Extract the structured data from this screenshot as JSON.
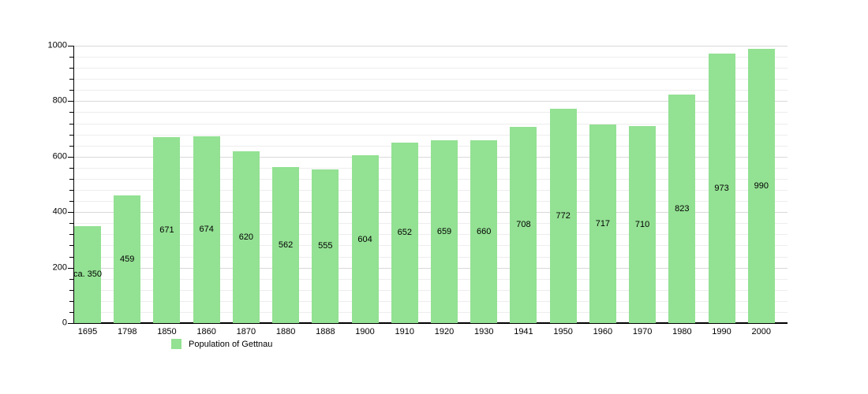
{
  "chart_data": {
    "type": "bar",
    "categories": [
      "1695",
      "1798",
      "1850",
      "1860",
      "1870",
      "1880",
      "1888",
      "1900",
      "1910",
      "1920",
      "1930",
      "1941",
      "1950",
      "1960",
      "1970",
      "1980",
      "1990",
      "2000"
    ],
    "values": [
      350,
      459,
      671,
      674,
      620,
      562,
      555,
      604,
      652,
      659,
      660,
      708,
      772,
      717,
      710,
      823,
      973,
      990
    ],
    "bar_labels": [
      "ca. 350",
      "459",
      "671",
      "674",
      "620",
      "562",
      "555",
      "604",
      "652",
      "659",
      "660",
      "708",
      "772",
      "717",
      "710",
      "823",
      "973",
      "990"
    ],
    "title": "",
    "xlabel": "",
    "ylabel": "",
    "ylim": [
      0,
      1000
    ],
    "yticks": [
      0,
      200,
      400,
      600,
      800,
      1000
    ],
    "minor_tick_step": 40,
    "grid": true,
    "legend": {
      "label": "Population of Gettnau",
      "position": "bottom-left"
    },
    "colors": {
      "bar_fill": "#93e193",
      "axis": "#000000",
      "major_grid": "#d9d9d9",
      "minor_grid": "#ededed",
      "text": "#000000"
    }
  }
}
